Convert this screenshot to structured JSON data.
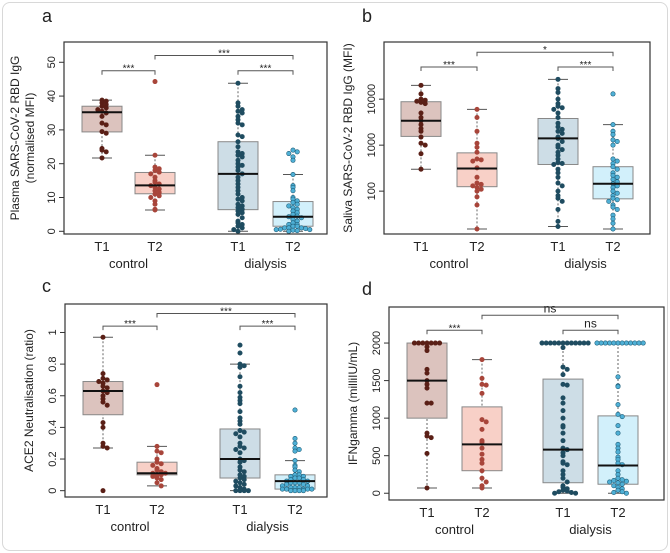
{
  "chart_data": [
    {
      "type": "box",
      "panel_letter": "a",
      "ylabel": [
        "Plasma SARS-CoV-2 RBD IgG",
        "(normalised MFI)"
      ],
      "yscale": "linear",
      "ylim": [
        -0.8,
        56
      ],
      "yticks": [
        0,
        10,
        20,
        30,
        40,
        50
      ],
      "ytick_labels": [
        "0",
        "10",
        "20",
        "30",
        "40",
        "50"
      ],
      "groups": [
        "control",
        "dialysis"
      ],
      "categories": [
        "T1",
        "T2",
        "T1",
        "T2"
      ],
      "boxes": [
        {
          "group": "control",
          "time": "T1",
          "median": 35.2,
          "q1": 29.4,
          "q3": 37,
          "whisker_low": 21.7,
          "whisker_high": 38.8,
          "points": [
            38.8,
            38.5,
            38,
            37.5,
            37,
            36.5,
            36,
            35.5,
            35,
            34,
            32,
            31.5,
            29.5,
            29,
            24.5,
            24,
            23.5,
            21.7
          ]
        },
        {
          "group": "control",
          "time": "T2",
          "median": 13.6,
          "q1": 11.1,
          "q3": 17.4,
          "whisker_low": 6.3,
          "whisker_high": 22.5,
          "points": [
            44.3,
            22.5,
            19,
            18.5,
            18,
            17.5,
            17,
            16,
            15,
            14.5,
            14,
            13.5,
            13,
            12.5,
            12,
            11.5,
            11,
            10.5,
            10,
            9,
            8,
            6.5,
            6.3
          ]
        },
        {
          "group": "dialysis",
          "time": "T1",
          "median": 17,
          "q1": 6.4,
          "q3": 26.5,
          "whisker_low": 0,
          "whisker_high": 43.8,
          "points": [
            43.8,
            38,
            37,
            36,
            35.5,
            35,
            34,
            33,
            32,
            31.5,
            28.5,
            28,
            26.5,
            25,
            23.5,
            23,
            22.5,
            22,
            21,
            20,
            19.5,
            19,
            18,
            17,
            16,
            15,
            14,
            13,
            12,
            11,
            10,
            9.5,
            9,
            8,
            7.5,
            7,
            6.5,
            6,
            5.5,
            5,
            4,
            3,
            2.5,
            2,
            1.5,
            1,
            0.5,
            0
          ]
        },
        {
          "group": "dialysis",
          "time": "T2",
          "median": 4.3,
          "q1": 1.5,
          "q3": 8.8,
          "whisker_low": 0,
          "whisker_high": 16.8,
          "points": [
            24,
            23.5,
            23,
            22,
            21,
            16.8,
            13.5,
            13,
            12,
            10,
            9.5,
            9,
            8.5,
            8,
            7.5,
            7,
            6.5,
            6,
            5.5,
            5,
            4.5,
            4.3,
            4,
            3.5,
            3,
            2.5,
            2,
            2,
            1.5,
            1.5,
            1,
            1,
            1,
            0.8,
            0.6,
            0.5,
            0.5,
            0.3,
            0.2,
            0
          ]
        }
      ],
      "comparisons": [
        {
          "from": 0,
          "to": 1,
          "label": "***",
          "level": 47.5
        },
        {
          "from": 1,
          "to": 3,
          "label": "***",
          "level": 52
        },
        {
          "from": 2,
          "to": 3,
          "label": "***",
          "level": 47.5
        }
      ]
    },
    {
      "type": "box",
      "panel_letter": "b",
      "ylabel": [
        "Saliva SARS-CoV-2 RBD IgG (MFI)"
      ],
      "yscale": "log",
      "ylim": [
        11.7,
        175000
      ],
      "yticks": [
        100,
        1000,
        10000
      ],
      "ytick_labels": [
        "100",
        "1000",
        "10000"
      ],
      "groups": [
        "control",
        "dialysis"
      ],
      "categories": [
        "T1",
        "T2",
        "T1",
        "T2"
      ],
      "boxes": [
        {
          "group": "control",
          "time": "T1",
          "median": 3400,
          "q1": 1550,
          "q3": 8800,
          "whisker_low": 300,
          "whisker_high": 20000,
          "points": [
            20000,
            13000,
            10000,
            9500,
            9000,
            8500,
            8000,
            5000,
            4000,
            3400,
            2800,
            2300,
            2000,
            1500,
            1100,
            1000,
            650,
            300
          ]
        },
        {
          "group": "control",
          "time": "T2",
          "median": 310,
          "q1": 125,
          "q3": 680,
          "whisker_low": 15,
          "whisker_high": 6000,
          "points": [
            6000,
            4000,
            2000,
            1100,
            900,
            700,
            500,
            480,
            450,
            320,
            200,
            150,
            140,
            130,
            120,
            110,
            100,
            75,
            50,
            15
          ]
        },
        {
          "group": "dialysis",
          "time": "T1",
          "median": 1400,
          "q1": 380,
          "q3": 3800,
          "whisker_low": 17,
          "whisker_high": 27000,
          "points": [
            27000,
            17000,
            14000,
            10000,
            8000,
            7000,
            6500,
            6000,
            5000,
            4000,
            3000,
            2500,
            2200,
            2000,
            1800,
            1500,
            1400,
            1200,
            1000,
            900,
            800,
            700,
            600,
            500,
            420,
            400,
            380,
            300,
            250,
            200,
            150,
            130,
            100,
            80,
            70,
            60,
            40,
            22,
            17
          ]
        },
        {
          "group": "dialysis",
          "time": "T2",
          "median": 145,
          "q1": 68,
          "q3": 340,
          "whisker_low": 15,
          "whisker_high": 2800,
          "points": [
            13000,
            2800,
            2000,
            1700,
            1300,
            1200,
            1000,
            500,
            450,
            400,
            340,
            300,
            250,
            220,
            200,
            180,
            160,
            145,
            130,
            120,
            100,
            90,
            80,
            70,
            65,
            60,
            50,
            45,
            40,
            30,
            25,
            20,
            15
          ]
        }
      ],
      "comparisons": [
        {
          "from": 0,
          "to": 1,
          "label": "***",
          "level": 50000
        },
        {
          "from": 1,
          "to": 3,
          "label": "*",
          "level": 105000
        },
        {
          "from": 2,
          "to": 3,
          "label": "***",
          "level": 50000
        }
      ]
    },
    {
      "type": "box",
      "panel_letter": "c",
      "ylabel": [
        "ACE2 Neutralisation (ratio)"
      ],
      "yscale": "linear",
      "ylim": [
        -0.04,
        1.18
      ],
      "yticks": [
        0,
        0.2,
        0.4,
        0.6,
        0.8,
        1
      ],
      "ytick_labels": [
        "0",
        "0.2",
        "0.4",
        "0.6",
        "0.8",
        "1"
      ],
      "groups": [
        "control",
        "dialysis"
      ],
      "categories": [
        "T1",
        "T2",
        "T1",
        "T2"
      ],
      "boxes": [
        {
          "group": "control",
          "time": "T1",
          "median": 0.63,
          "q1": 0.48,
          "q3": 0.69,
          "whisker_low": 0.27,
          "whisker_high": 0.97,
          "points": [
            0.97,
            0.74,
            0.71,
            0.7,
            0.69,
            0.68,
            0.66,
            0.65,
            0.63,
            0.62,
            0.6,
            0.58,
            0.56,
            0.54,
            0.43,
            0.4,
            0.3,
            0.28,
            0.27,
            0
          ]
        },
        {
          "group": "control",
          "time": "T2",
          "median": 0.11,
          "q1": 0.1,
          "q3": 0.18,
          "whisker_low": 0.03,
          "whisker_high": 0.28,
          "points": [
            0.67,
            0.28,
            0.25,
            0.24,
            0.2,
            0.18,
            0.17,
            0.16,
            0.14,
            0.13,
            0.12,
            0.11,
            0.11,
            0.1,
            0.1,
            0.09,
            0.08,
            0.07,
            0.05,
            0.03
          ]
        },
        {
          "group": "dialysis",
          "time": "T1",
          "median": 0.2,
          "q1": 0.08,
          "q3": 0.39,
          "whisker_low": 0,
          "whisker_high": 0.8,
          "points": [
            0.92,
            0.87,
            0.8,
            0.79,
            0.78,
            0.72,
            0.66,
            0.62,
            0.59,
            0.57,
            0.55,
            0.5,
            0.46,
            0.44,
            0.42,
            0.38,
            0.37,
            0.36,
            0.34,
            0.3,
            0.28,
            0.27,
            0.26,
            0.24,
            0.2,
            0.19,
            0.18,
            0.15,
            0.13,
            0.12,
            0.1,
            0.09,
            0.08,
            0.07,
            0.06,
            0.05,
            0.04,
            0.03,
            0.02,
            0.01,
            0,
            0,
            0,
            0
          ]
        },
        {
          "group": "dialysis",
          "time": "T2",
          "median": 0.06,
          "q1": 0.01,
          "q3": 0.1,
          "whisker_low": 0,
          "whisker_high": 0.19,
          "points": [
            0.51,
            0.33,
            0.3,
            0.27,
            0.26,
            0.25,
            0.19,
            0.16,
            0.15,
            0.13,
            0.12,
            0.1,
            0.1,
            0.09,
            0.09,
            0.08,
            0.08,
            0.07,
            0.07,
            0.06,
            0.06,
            0.05,
            0.05,
            0.05,
            0.04,
            0.04,
            0.03,
            0.03,
            0.02,
            0.02,
            0.02,
            0.01,
            0.01,
            0.01,
            0.01,
            0.01,
            0,
            0,
            0,
            0
          ]
        }
      ],
      "comparisons": [
        {
          "from": 0,
          "to": 1,
          "label": "***",
          "level": 1.04
        },
        {
          "from": 1,
          "to": 3,
          "label": "***",
          "level": 1.12
        },
        {
          "from": 2,
          "to": 3,
          "label": "***",
          "level": 1.04
        }
      ]
    },
    {
      "type": "box",
      "panel_letter": "d",
      "ylabel": [
        "IFNgamma (milliIU/mL)"
      ],
      "yscale": "linear",
      "ylim": [
        -90,
        2480
      ],
      "yticks": [
        0,
        500,
        1000,
        1500,
        2000
      ],
      "ytick_labels": [
        "0",
        "500",
        "1000",
        "1500",
        "2000"
      ],
      "groups": [
        "control",
        "dialysis"
      ],
      "categories": [
        "T1",
        "T2",
        "T1",
        "T2"
      ],
      "boxes": [
        {
          "group": "control",
          "time": "T1",
          "median": 1500,
          "q1": 1000,
          "q3": 2000,
          "whisker_low": 70,
          "whisker_high": 2000,
          "points": [
            2000,
            2000,
            2000,
            2000,
            2000,
            2000,
            2000,
            1950,
            1900,
            1650,
            1600,
            1500,
            1450,
            1400,
            1200,
            1200,
            800,
            760,
            740,
            530,
            70
          ]
        },
        {
          "group": "control",
          "time": "T2",
          "median": 650,
          "q1": 300,
          "q3": 1150,
          "whisker_low": 70,
          "whisker_high": 1780,
          "points": [
            1780,
            1530,
            1450,
            1440,
            1330,
            980,
            950,
            850,
            700,
            680,
            600,
            520,
            450,
            400,
            300,
            200,
            150,
            100,
            70
          ]
        },
        {
          "group": "dialysis",
          "time": "T1",
          "median": 580,
          "q1": 140,
          "q3": 1520,
          "whisker_low": 0,
          "whisker_high": 2000,
          "points": [
            2000,
            2000,
            2000,
            2000,
            2000,
            2000,
            2000,
            2000,
            2000,
            2000,
            2000,
            2000,
            1940,
            1680,
            1650,
            1580,
            1450,
            1440,
            1270,
            1200,
            1100,
            1000,
            900,
            880,
            800,
            700,
            600,
            580,
            540,
            500,
            420,
            400,
            380,
            300,
            250,
            200,
            150,
            100,
            80,
            60,
            40,
            30,
            20,
            10,
            0,
            0
          ]
        },
        {
          "group": "dialysis",
          "time": "T2",
          "median": 370,
          "q1": 120,
          "q3": 1030,
          "whisker_low": 0,
          "whisker_high": 2000,
          "points": [
            2000,
            2000,
            2000,
            2000,
            2000,
            2000,
            2000,
            2000,
            2000,
            2000,
            2000,
            2000,
            1550,
            1430,
            1420,
            1180,
            1050,
            1020,
            900,
            800,
            650,
            600,
            550,
            480,
            450,
            400,
            380,
            300,
            250,
            200,
            180,
            170,
            160,
            150,
            140,
            120,
            100,
            80,
            60,
            40,
            20,
            10,
            0
          ]
        }
      ],
      "comparisons": [
        {
          "from": 0,
          "to": 1,
          "label": "***",
          "level": 2170
        },
        {
          "from": 1,
          "to": 3,
          "label": "ns",
          "level": 2370
        },
        {
          "from": 2,
          "to": 3,
          "label": "ns",
          "level": 2170
        }
      ]
    }
  ],
  "colors": {
    "control_T1_fill": "#dcc3be",
    "control_T1_point": "#5a1f16",
    "control_T2_fill": "#f8d0c7",
    "control_T2_point": "#a8453a",
    "dialysis_T1_fill": "#cddde6",
    "dialysis_T1_point": "#1f4c60",
    "dialysis_T2_fill": "#d2f0fb",
    "dialysis_T2_point": "#4fb0d6"
  }
}
